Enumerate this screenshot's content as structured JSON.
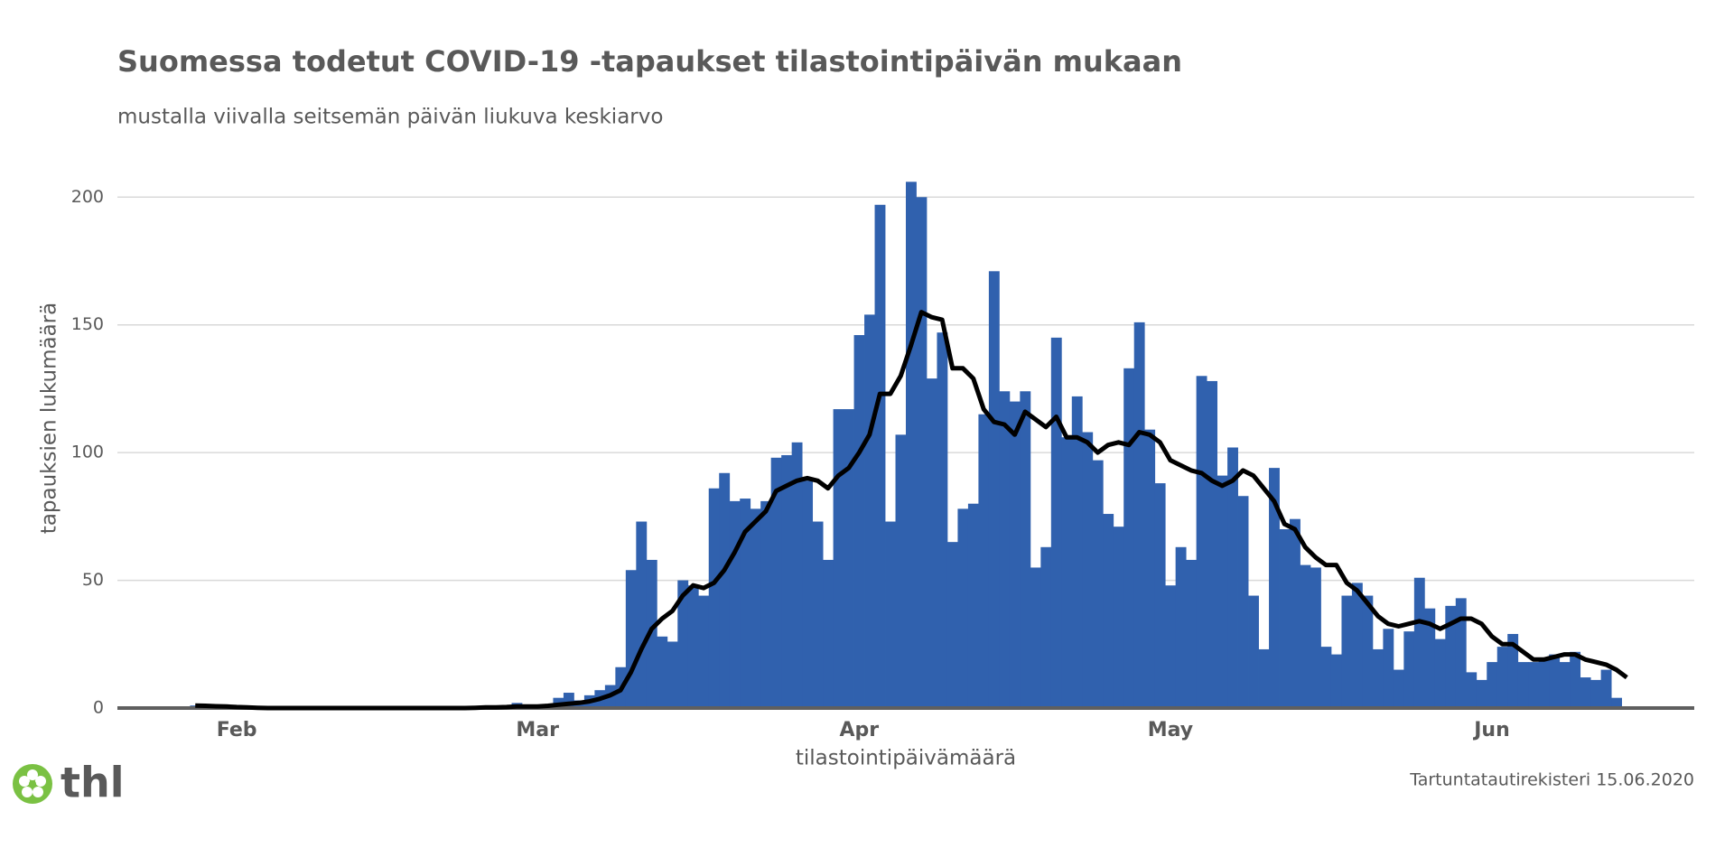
{
  "chart_data": {
    "type": "bar",
    "title": "Suomessa todetut COVID-19 -tapaukset tilastointipäivän mukaan",
    "subtitle": "mustalla viivalla seitsemän päivän liukuva keskiarvo",
    "y_label": "tapauksien lukumäärä",
    "x_label": "tilastointipäivämäärä",
    "source": "Tartuntatautirekisteri 15.06.2020",
    "logo": "thl",
    "categories": [
      null,
      null,
      null,
      null,
      null,
      null,
      null,
      null,
      null,
      null,
      null,
      "Feb",
      null,
      null,
      null,
      null,
      null,
      null,
      null,
      null,
      null,
      null,
      null,
      null,
      null,
      null,
      null,
      null,
      null,
      null,
      null,
      null,
      null,
      null,
      null,
      null,
      null,
      null,
      null,
      null,
      "Mar",
      null,
      null,
      null,
      null,
      null,
      null,
      null,
      null,
      null,
      null,
      null,
      null,
      null,
      null,
      null,
      null,
      null,
      null,
      null,
      null,
      null,
      null,
      null,
      null,
      null,
      null,
      null,
      null,
      null,
      null,
      "Apr",
      null,
      null,
      null,
      null,
      null,
      null,
      null,
      null,
      null,
      null,
      null,
      null,
      null,
      null,
      null,
      null,
      null,
      null,
      null,
      null,
      null,
      null,
      null,
      null,
      null,
      null,
      null,
      null,
      null,
      "May",
      null,
      null,
      null,
      null,
      null,
      null,
      null,
      null,
      null,
      null,
      null,
      null,
      null,
      null,
      null,
      null,
      null,
      null,
      null,
      null,
      null,
      null,
      null,
      null,
      null,
      null,
      null,
      null,
      null,
      null,
      "Jun",
      null,
      null,
      null,
      null,
      null,
      null,
      null,
      null,
      null,
      null,
      null,
      null,
      null,
      null,
      null,
      null,
      null,
      null,
      null
    ],
    "series": [
      {
        "type": "bar",
        "color": "#3061ae",
        "values": [
          0,
          0,
          0,
          0,
          0,
          0,
          0,
          1,
          0,
          0,
          0,
          0,
          0,
          0,
          0,
          0,
          0,
          0,
          0,
          0,
          0,
          0,
          0,
          0,
          0,
          0,
          0,
          0,
          0,
          0,
          0,
          0,
          0,
          0,
          0,
          1,
          0,
          1,
          2,
          1,
          1,
          1,
          4,
          6,
          3,
          5,
          7,
          9,
          16,
          54,
          73,
          58,
          28,
          26,
          50,
          48,
          44,
          86,
          92,
          81,
          82,
          78,
          81,
          98,
          99,
          104,
          89,
          73,
          58,
          117,
          117,
          146,
          154,
          197,
          73,
          107,
          206,
          200,
          129,
          147,
          65,
          78,
          80,
          115,
          171,
          124,
          120,
          124,
          55,
          63,
          145,
          106,
          122,
          108,
          97,
          76,
          71,
          133,
          151,
          109,
          88,
          48,
          63,
          58,
          130,
          128,
          91,
          102,
          83,
          44,
          23,
          94,
          70,
          74,
          56,
          55,
          24,
          21,
          44,
          49,
          44,
          23,
          31,
          15,
          30,
          51,
          39,
          27,
          40,
          43,
          14,
          11,
          18,
          24,
          29,
          18,
          18,
          19,
          21,
          18,
          22,
          12,
          11,
          15,
          4,
          null,
          null,
          null,
          null,
          null,
          null,
          null
        ]
      },
      {
        "type": "line",
        "color": "#000000",
        "values": [
          null,
          null,
          null,
          null,
          null,
          null,
          null,
          1,
          0.9,
          0.7,
          0.6,
          0.4,
          0.3,
          0.1,
          0,
          0,
          0,
          0,
          0,
          0,
          0,
          0,
          0,
          0,
          0,
          0,
          0,
          0,
          0,
          0,
          0,
          0,
          0,
          0,
          0.1,
          0.3,
          0.3,
          0.4,
          0.6,
          0.6,
          0.6,
          0.9,
          1.3,
          1.7,
          2,
          2.6,
          3.6,
          5,
          7,
          14,
          23,
          31,
          35,
          38,
          44,
          48,
          47,
          49,
          54,
          61,
          69,
          73,
          77,
          85,
          87,
          89,
          90,
          89,
          86,
          91,
          94,
          100,
          107,
          123,
          123,
          130,
          142,
          155,
          153,
          152,
          133,
          133,
          129,
          117,
          112,
          111,
          107,
          116,
          113,
          110,
          114,
          106,
          106,
          104,
          100,
          103,
          104,
          103,
          108,
          107,
          104,
          97,
          95,
          93,
          92,
          89,
          87,
          89,
          93,
          91,
          86,
          81,
          72,
          70,
          63,
          59,
          56,
          56,
          49,
          46,
          41,
          36,
          33,
          32,
          33,
          34,
          33,
          31,
          33,
          35,
          35,
          33,
          28,
          25,
          25,
          22,
          19,
          19,
          20,
          21,
          21,
          19,
          18,
          17,
          15,
          12,
          null,
          null,
          null,
          null,
          null,
          null
        ]
      }
    ],
    "ylim": [
      0,
      210
    ],
    "yticks": [
      0,
      50,
      100,
      150,
      200
    ],
    "grid": true
  }
}
